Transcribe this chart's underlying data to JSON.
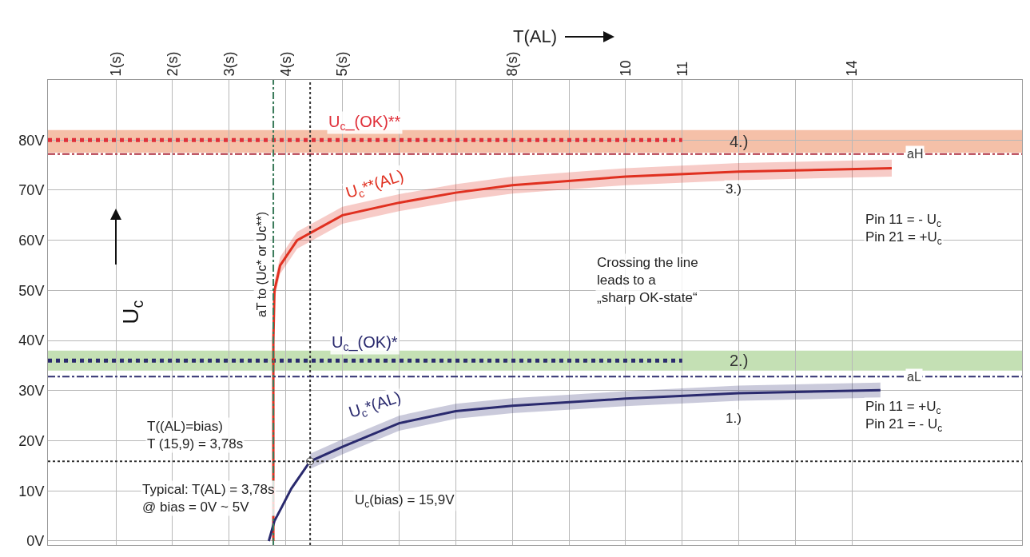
{
  "chart_data": {
    "type": "line",
    "xlabel": "T(AL)",
    "ylabel": "U$_{c}$",
    "xlim": [
      -0.2,
      17
    ],
    "ylim": [
      -0.8,
      92
    ],
    "xticks": [
      {
        "value": 1,
        "label": "1(s)"
      },
      {
        "value": 2,
        "label": "2(s)"
      },
      {
        "value": 3,
        "label": "3(s)"
      },
      {
        "value": 4,
        "label": "4(s)"
      },
      {
        "value": 5,
        "label": "5(s)"
      },
      {
        "value": 6,
        "label": null
      },
      {
        "value": 7,
        "label": null
      },
      {
        "value": 8,
        "label": "8(s)"
      },
      {
        "value": 9,
        "label": null
      },
      10,
      11,
      {
        "value": 12,
        "label": null
      },
      {
        "value": 13,
        "label": null
      },
      14
    ],
    "yticks": [
      {
        "value": 0,
        "label": "0V"
      },
      {
        "value": 10,
        "label": "10V"
      },
      {
        "value": 20,
        "label": "20V"
      },
      {
        "value": 30,
        "label": "30V"
      },
      {
        "value": 40,
        "label": "40V"
      },
      {
        "value": 50,
        "label": "50V"
      },
      {
        "value": 60,
        "label": "60V"
      },
      {
        "value": 70,
        "label": "70V"
      },
      {
        "value": 80,
        "label": "80V"
      }
    ],
    "grid": true,
    "legend": false,
    "series": [
      {
        "name": "U$_{c}$_(OK)**",
        "color": "#e0303a",
        "line_style": "dotted",
        "x": [
          -0.2,
          11
        ],
        "values": [
          80,
          80
        ]
      },
      {
        "name": "U$_{c}$_(OK)*",
        "color": "#2a2a6e",
        "line_style": "dotted",
        "x": [
          -0.2,
          11
        ],
        "values": [
          36,
          36
        ]
      },
      {
        "name": "U$_{c}$**(AL)",
        "color": "#e03020",
        "line_style": "solid",
        "x": [
          3.78,
          3.78,
          3.8,
          3.9,
          4.2,
          5,
          6,
          7,
          8,
          10,
          12,
          14.7
        ],
        "values": [
          0,
          40,
          50,
          55,
          60,
          65,
          67.5,
          69.5,
          71,
          72.7,
          73.7,
          74.4
        ],
        "lower": [
          null,
          38.3,
          48.3,
          53.3,
          58.3,
          63.3,
          65.8,
          67.8,
          69.3,
          71,
          72,
          72.7
        ],
        "upper": [
          null,
          41.7,
          51.7,
          56.7,
          61.7,
          66.7,
          69.2,
          71.2,
          72.7,
          74.4,
          75.4,
          76.1
        ]
      },
      {
        "name": "U$_{c}$*(AL)",
        "color": "#2a2a6e",
        "line_style": "solid",
        "x": [
          3.7,
          3.8,
          3.93,
          4.1,
          4.43,
          5,
          6,
          7,
          8,
          10,
          12,
          14.5
        ],
        "values": [
          0,
          4,
          6.8,
          10.5,
          15.9,
          18.8,
          23.5,
          25.9,
          27,
          28.4,
          29.5,
          30.1
        ],
        "lower": [
          null,
          null,
          null,
          null,
          14.4,
          17.3,
          22,
          24.4,
          25.5,
          26.9,
          28,
          28.6
        ],
        "upper": [
          null,
          null,
          null,
          null,
          17.4,
          20.3,
          25,
          27.4,
          28.5,
          29.9,
          31,
          31.6
        ]
      },
      {
        "type": "scatter",
        "color": "#ffffff",
        "marker": "circle",
        "x": [
          4.43
        ],
        "values": [
          15.9
        ]
      }
    ],
    "ref_lines": [
      {
        "axis": "y",
        "value": 77.2,
        "label": "aH",
        "color": "#b03040",
        "line_style": "dashed"
      },
      {
        "axis": "y",
        "value": 32.8,
        "label": "aL",
        "color": "#303070",
        "line_style": "dashed"
      },
      {
        "axis": "x",
        "value": 3.78,
        "label": "aT to (Uc* or Uc**)",
        "color": "#3a7a5a",
        "line_style": "dashed"
      },
      {
        "axis": "x",
        "value": 4.43,
        "label": null,
        "color": "#333333",
        "line_style": "dotted"
      },
      {
        "axis": "y",
        "value": 15.9,
        "label": null,
        "color": "#333333",
        "line_style": "dotted"
      }
    ],
    "bands": [
      {
        "axis": "y",
        "from": 77.5,
        "to": 82,
        "label": "4.)",
        "color": "#f5c0a8"
      },
      {
        "axis": "y",
        "from": 34,
        "to": 38,
        "label": "2.)",
        "color": "#c4e0b4"
      }
    ],
    "annotations": [
      {
        "text": "3.)",
        "x": 11.9,
        "y": 70.3
      },
      {
        "text": "1.)",
        "x": 11.9,
        "y": 24.5
      },
      "Pin 11 = - U$_{c}$\nPin 21 = +U$_{c}$",
      "Pin 11 = +U$_{c}$\nPin 21 = - U$_{c}$",
      "Crossing the line\nleads to a\n„sharp OK-state“",
      "T((AL)=bias)\nT (15,9) = 3,78s",
      "Typical: T(AL) = 3,78s\n@ bias = 0V ~ 5V",
      "U$_{c}$(bias) = 15,9V"
    ]
  }
}
